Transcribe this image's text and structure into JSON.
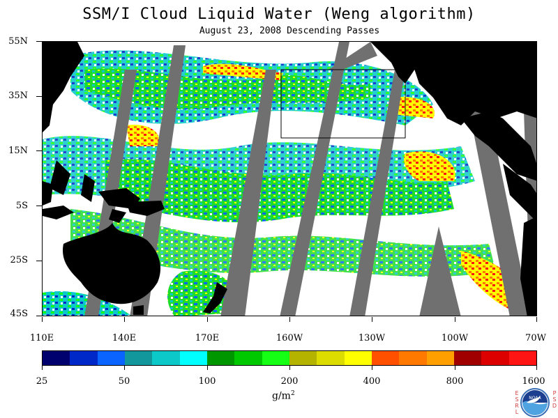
{
  "title": "SSM/I Cloud Liquid Water (Weng algorithm)",
  "subtitle": "August 23, 2008  Descending Passes",
  "map": {
    "lat_labels": [
      "55N",
      "35N",
      "15N",
      "5S",
      "25S",
      "45S"
    ],
    "lon_labels": [
      "110E",
      "140E",
      "170E",
      "160W",
      "130W",
      "100W",
      "70W"
    ],
    "land_color": "#000000",
    "no_data_color": "#707070",
    "background_color": "#ffffff"
  },
  "colorbar": {
    "colors": [
      "#00006e",
      "#0028c8",
      "#0a64ff",
      "#12989c",
      "#0cc8c8",
      "#00ffff",
      "#009600",
      "#00c800",
      "#14ff14",
      "#b4b400",
      "#dcdc00",
      "#ffff00",
      "#ff5000",
      "#ff7800",
      "#ffa000",
      "#a00000",
      "#dc0000",
      "#ff1414"
    ],
    "labels": [
      "25",
      "50",
      "100",
      "200",
      "400",
      "800",
      "1600"
    ],
    "unit_base": "g/m",
    "unit_exp": "2"
  },
  "logo": {
    "left_letters": [
      "E",
      "S",
      "R",
      "L"
    ],
    "right_letters": [
      "P",
      "S",
      "D"
    ],
    "text": "NOAA"
  }
}
